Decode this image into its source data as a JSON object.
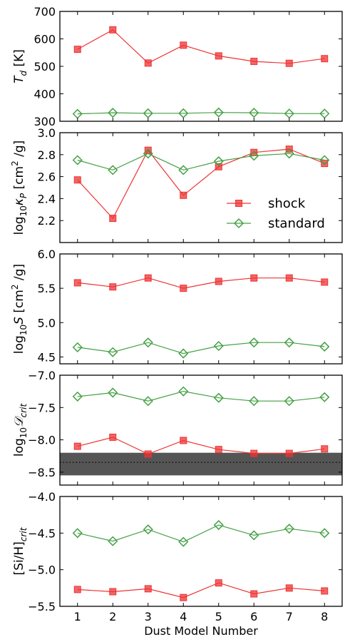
{
  "chart_data": [
    {
      "type": "line",
      "ylabel_parts": [
        {
          "t": "T",
          "i": true
        },
        {
          "t": "d",
          "i": true,
          "sub": true
        },
        {
          "t": " [K]"
        }
      ],
      "ylim": [
        300,
        700
      ],
      "yticks": [
        "300",
        "400",
        "500",
        "600",
        "700"
      ],
      "x": [
        1,
        2,
        3,
        4,
        5,
        6,
        7,
        8
      ],
      "series": [
        {
          "name": "shock",
          "values": [
            562,
            633,
            512,
            577,
            538,
            518,
            511,
            528
          ]
        },
        {
          "name": "standard",
          "values": [
            327,
            331,
            329,
            329,
            332,
            331,
            328,
            328
          ]
        }
      ]
    },
    {
      "type": "line",
      "ylabel_parts": [
        {
          "t": "log"
        },
        {
          "t": "10",
          "sub": true
        },
        {
          "t": "κ",
          "i": true
        },
        {
          "t": "P",
          "i": true,
          "sub": true
        },
        {
          "t": " [cm"
        },
        {
          "t": "2",
          "sup": true
        },
        {
          "t": " /g]"
        }
      ],
      "ylim": [
        2.0,
        3.0
      ],
      "yticks": [
        "2.2",
        "2.4",
        "2.6",
        "2.8",
        "3.0"
      ],
      "x": [
        1,
        2,
        3,
        4,
        5,
        6,
        7,
        8
      ],
      "legend": {
        "position": "center-right",
        "entries": [
          "shock",
          "standard"
        ]
      },
      "series": [
        {
          "name": "shock",
          "values": [
            2.57,
            2.22,
            2.84,
            2.43,
            2.69,
            2.82,
            2.85,
            2.72
          ]
        },
        {
          "name": "standard",
          "values": [
            2.75,
            2.66,
            2.81,
            2.66,
            2.74,
            2.79,
            2.81,
            2.75
          ]
        }
      ]
    },
    {
      "type": "line",
      "ylabel_parts": [
        {
          "t": "log"
        },
        {
          "t": "10",
          "sub": true
        },
        {
          "t": "S",
          "i": true
        },
        {
          "t": " [cm"
        },
        {
          "t": "2",
          "sup": true
        },
        {
          "t": " /g]"
        }
      ],
      "ylim": [
        4.4,
        6.0
      ],
      "yticks": [
        "4.5",
        "5.0",
        "5.5",
        "6.0"
      ],
      "x": [
        1,
        2,
        3,
        4,
        5,
        6,
        7,
        8
      ],
      "series": [
        {
          "name": "shock",
          "values": [
            5.58,
            5.52,
            5.65,
            5.5,
            5.6,
            5.65,
            5.65,
            5.59
          ]
        },
        {
          "name": "standard",
          "values": [
            4.64,
            4.57,
            4.71,
            4.55,
            4.66,
            4.71,
            4.71,
            4.65
          ]
        }
      ]
    },
    {
      "type": "line",
      "ylabel_parts": [
        {
          "t": "log"
        },
        {
          "t": "10",
          "sub": true
        },
        {
          "t": "𝒟",
          "i": true
        },
        {
          "t": "crit",
          "i": true,
          "sub": true
        }
      ],
      "ylim": [
        -8.7,
        -7.0
      ],
      "yticks": [
        "-8.5",
        "-8.0",
        "-7.5",
        "-7.0"
      ],
      "x": [
        1,
        2,
        3,
        4,
        5,
        6,
        7,
        8
      ],
      "band": {
        "y0": -8.55,
        "y1": -8.2,
        "dotted_line": -8.35
      },
      "series": [
        {
          "name": "shock",
          "values": [
            -8.1,
            -7.96,
            -8.22,
            -8.01,
            -8.15,
            -8.21,
            -8.21,
            -8.14
          ]
        },
        {
          "name": "standard",
          "values": [
            -7.33,
            -7.27,
            -7.4,
            -7.25,
            -7.35,
            -7.4,
            -7.4,
            -7.34
          ]
        }
      ]
    },
    {
      "type": "line",
      "ylabel_parts": [
        {
          "t": "[Si/H]"
        },
        {
          "t": "crit",
          "i": true,
          "sub": true
        }
      ],
      "ylim": [
        -5.5,
        -4.0
      ],
      "yticks": [
        "-5.5",
        "-5.0",
        "-4.5",
        "-4.0"
      ],
      "x": [
        1,
        2,
        3,
        4,
        5,
        6,
        7,
        8
      ],
      "xlabel": "Dust Model Number",
      "xticks": [
        "1",
        "2",
        "3",
        "4",
        "5",
        "6",
        "7",
        "8"
      ],
      "series": [
        {
          "name": "shock",
          "values": [
            -5.27,
            -5.3,
            -5.26,
            -5.38,
            -5.18,
            -5.33,
            -5.25,
            -5.29
          ]
        },
        {
          "name": "standard",
          "values": [
            -4.5,
            -4.61,
            -4.45,
            -4.62,
            -4.39,
            -4.53,
            -4.44,
            -4.5
          ]
        }
      ]
    }
  ],
  "colors": {
    "shock": "#ee3333",
    "standard": "#44a044",
    "band": "#555555"
  }
}
